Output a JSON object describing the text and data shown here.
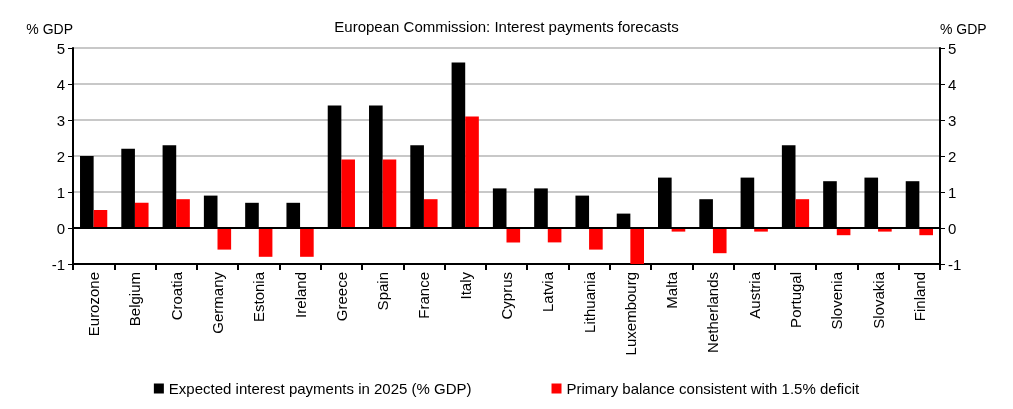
{
  "chart_data": {
    "type": "bar",
    "title": "European Commission: Interest payments forecasts",
    "ylabel": "% GDP",
    "y2label": "% GDP",
    "categories": [
      "Eurozone",
      "Belgium",
      "Croatia",
      "Germany",
      "Estonia",
      "Ireland",
      "Greece",
      "Spain",
      "France",
      "Italy",
      "Cyprus",
      "Latvia",
      "Lithuania",
      "Luxembourg",
      "Malta",
      "Netherlands",
      "Austria",
      "Portugal",
      "Slovenia",
      "Slovakia",
      "Finland"
    ],
    "series": [
      {
        "name": "Expected interest payments in 2025 (% GDP)",
        "color": "#000000",
        "values": [
          2.0,
          2.2,
          2.3,
          0.9,
          0.7,
          0.7,
          3.4,
          3.4,
          2.3,
          4.6,
          1.1,
          1.1,
          0.9,
          0.4,
          1.4,
          0.8,
          1.4,
          2.3,
          1.3,
          1.4,
          1.3
        ]
      },
      {
        "name": "Primary balance consistent with 1.5% deficit",
        "color": "#ff0000",
        "values": [
          0.5,
          0.7,
          0.8,
          -0.6,
          -0.8,
          -0.8,
          1.9,
          1.9,
          0.8,
          3.1,
          -0.4,
          -0.4,
          -0.6,
          -1.0,
          -0.1,
          -0.7,
          -0.1,
          0.8,
          -0.2,
          -0.1,
          -0.2
        ]
      }
    ],
    "ylim": [
      -1,
      5
    ],
    "yticks": [
      -1,
      0,
      1,
      2,
      3,
      4,
      5
    ],
    "y2lim": [
      -1,
      5
    ],
    "y2ticks": [
      -1,
      0,
      1,
      2,
      3,
      4,
      5
    ],
    "ref_lines": [
      {
        "axis": "y",
        "value": 0,
        "color": "#000000"
      }
    ],
    "grid": "y",
    "legend": "bottom"
  }
}
